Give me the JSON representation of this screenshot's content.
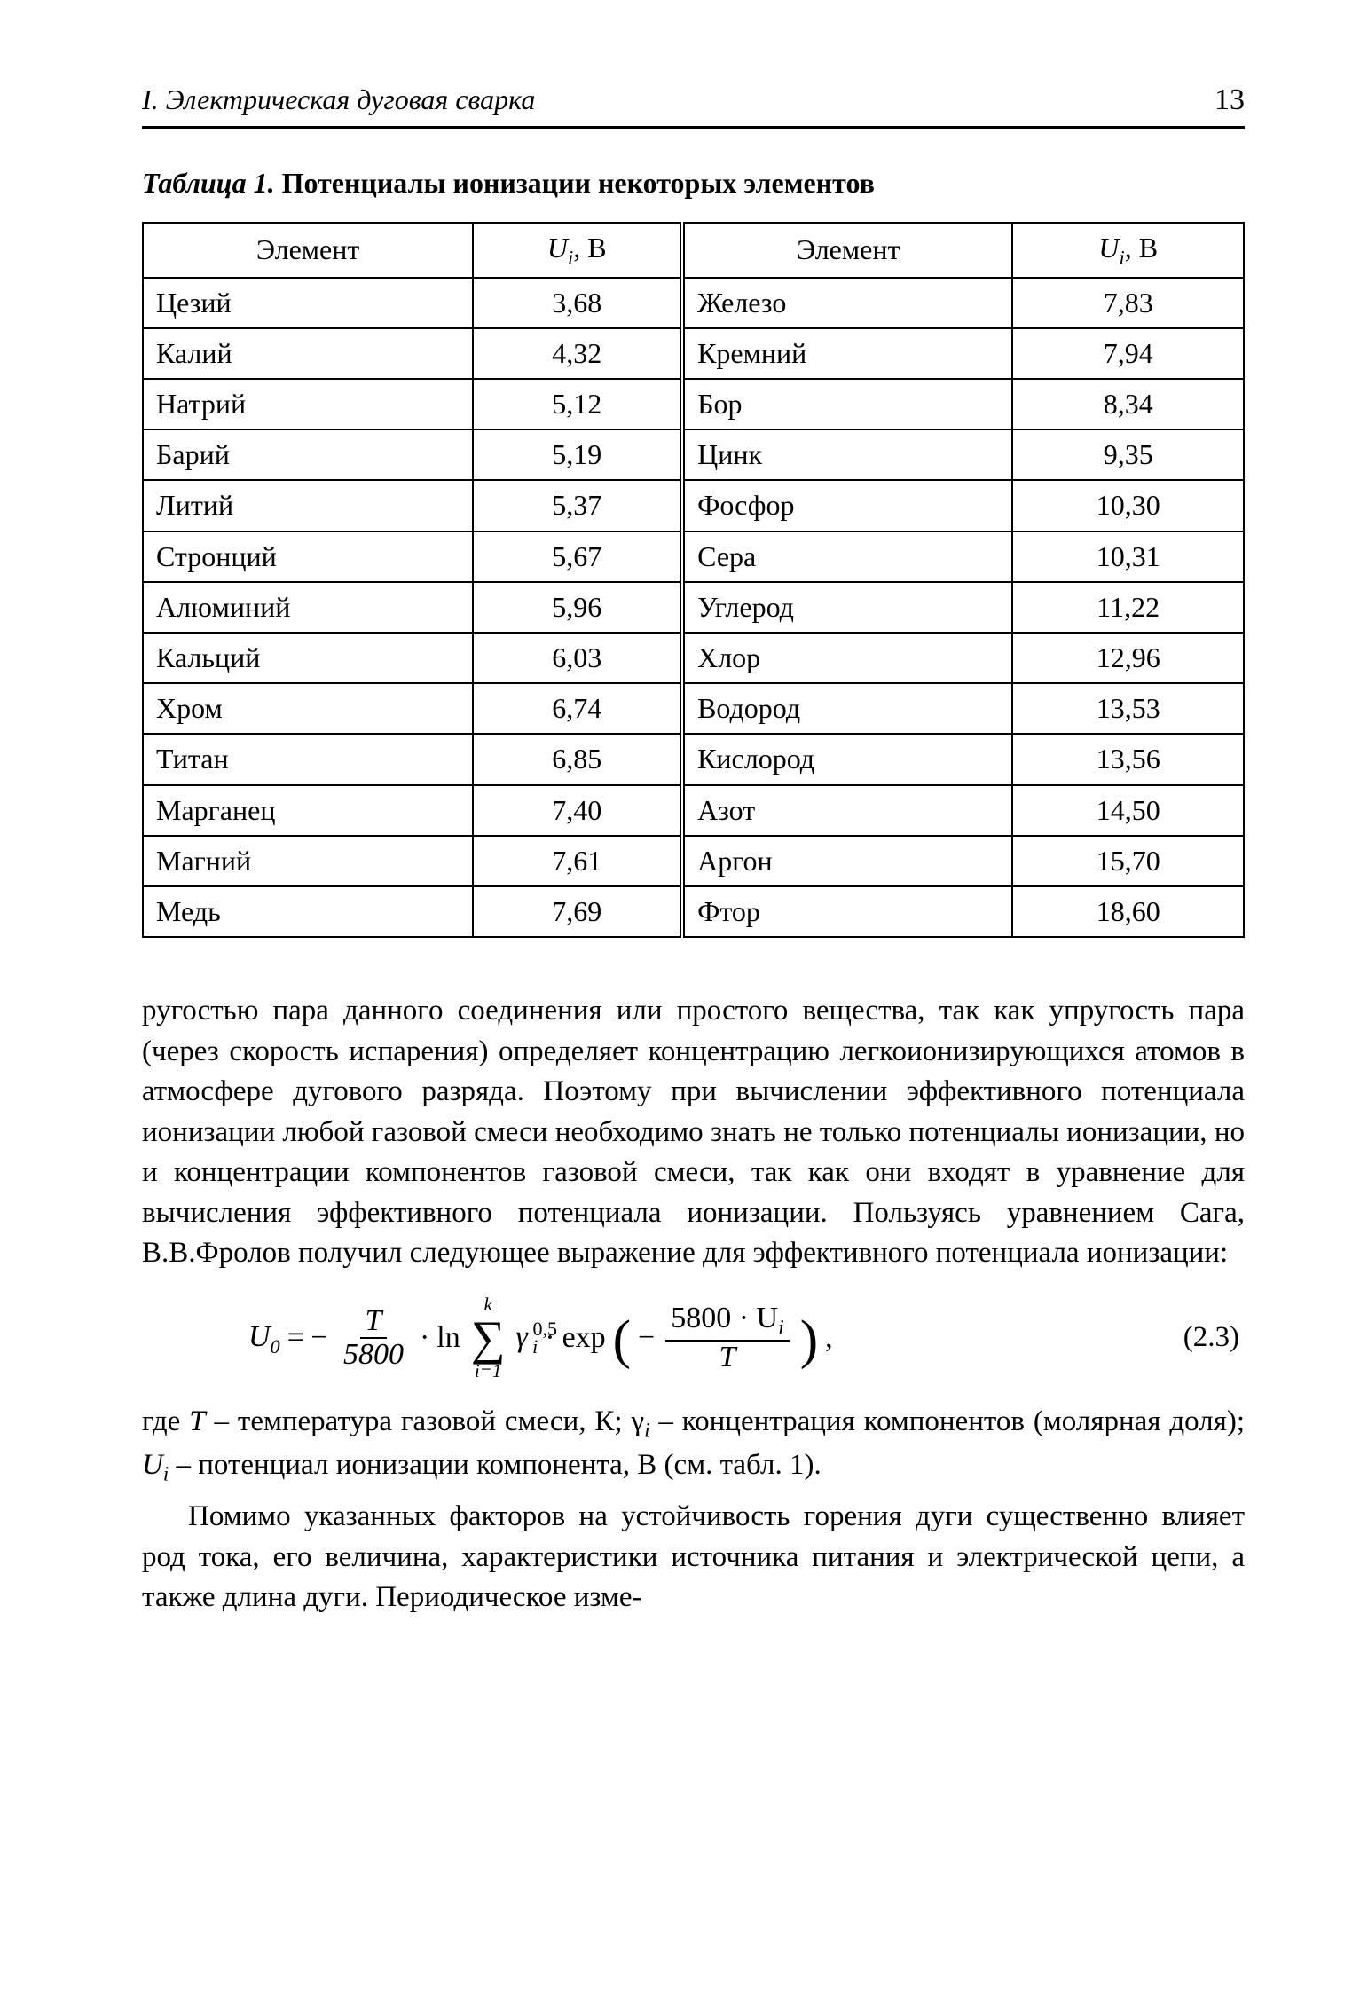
{
  "page": {
    "section_title": "I. Электрическая дуговая сварка",
    "page_number": "13"
  },
  "table": {
    "caption_label": "Таблица 1.",
    "caption_text": "Потенциалы ионизации некоторых элементов",
    "header_element": "Элемент",
    "header_value_var": "U",
    "header_value_sub": "i",
    "header_value_unit": ", В",
    "rows": [
      {
        "e1": "Цезий",
        "v1": "3,68",
        "e2": "Железо",
        "v2": "7,83"
      },
      {
        "e1": "Калий",
        "v1": "4,32",
        "e2": "Кремний",
        "v2": "7,94"
      },
      {
        "e1": "Натрий",
        "v1": "5,12",
        "e2": "Бор",
        "v2": "8,34"
      },
      {
        "e1": "Барий",
        "v1": "5,19",
        "e2": "Цинк",
        "v2": "9,35"
      },
      {
        "e1": "Литий",
        "v1": "5,37",
        "e2": "Фосфор",
        "v2": "10,30"
      },
      {
        "e1": "Стронций",
        "v1": "5,67",
        "e2": "Сера",
        "v2": "10,31"
      },
      {
        "e1": "Алюминий",
        "v1": "5,96",
        "e2": "Углерод",
        "v2": "11,22"
      },
      {
        "e1": "Кальций",
        "v1": "6,03",
        "e2": "Хлор",
        "v2": "12,96"
      },
      {
        "e1": "Хром",
        "v1": "6,74",
        "e2": "Водород",
        "v2": "13,53"
      },
      {
        "e1": "Титан",
        "v1": "6,85",
        "e2": "Кислород",
        "v2": "13,56"
      },
      {
        "e1": "Марганец",
        "v1": "7,40",
        "e2": "Азот",
        "v2": "14,50"
      },
      {
        "e1": "Магний",
        "v1": "7,61",
        "e2": "Аргон",
        "v2": "15,70"
      },
      {
        "e1": "Медь",
        "v1": "7,69",
        "e2": "Фтор",
        "v2": "18,60"
      }
    ]
  },
  "body": {
    "para1": "ругостью пара данного соединения или простого вещества, так как упругость пара (через скорость испарения) определяет концентрацию легкоионизирующихся атомов в атмосфере дугового разряда. Поэтому при вычислении эффективного потенциала ионизации любой газовой смеси необходимо знать не только потенциалы ионизации, но и концентрации компонентов газовой смеси, так как они входят в уравнение для вычисления эффективного потенциала ионизации. Пользуясь уравнением Сага, В.В.Фролов получил следующее выражение для эффективного потенциала ионизации:",
    "para2_a": "где ",
    "para2_T": "T",
    "para2_b": "  – температура газовой смеси, К; γ",
    "para2_sub_i": "i",
    "para2_c": " – концентрация компонентов (молярная доля); ",
    "para2_U": "U",
    "para2_sub_i2": "i",
    "para2_d": " – потенциал ионизации компонента, В (см. табл. 1).",
    "para3": "Помимо указанных факторов на устойчивость горения дуги существенно влияет род тока, его величина, характеристики источника питания и электрической цепи, а также длина дуги. Периодическое изме-"
  },
  "formula": {
    "eq_number": "(2.3)",
    "U0_var": "U",
    "U0_sub": "0",
    "eq": "= −",
    "frac1_num": "T",
    "frac1_den": "5800",
    "dot": "·",
    "ln": "ln",
    "sum_upper": "k",
    "sum_lower": "i=1",
    "gamma": "γ",
    "gamma_sub": "i",
    "gamma_sup": "0,5",
    "exp": "exp",
    "minus": "−",
    "frac2_num": "5800 · U",
    "frac2_num_sub": "i",
    "frac2_den": "T",
    "comma": ","
  }
}
